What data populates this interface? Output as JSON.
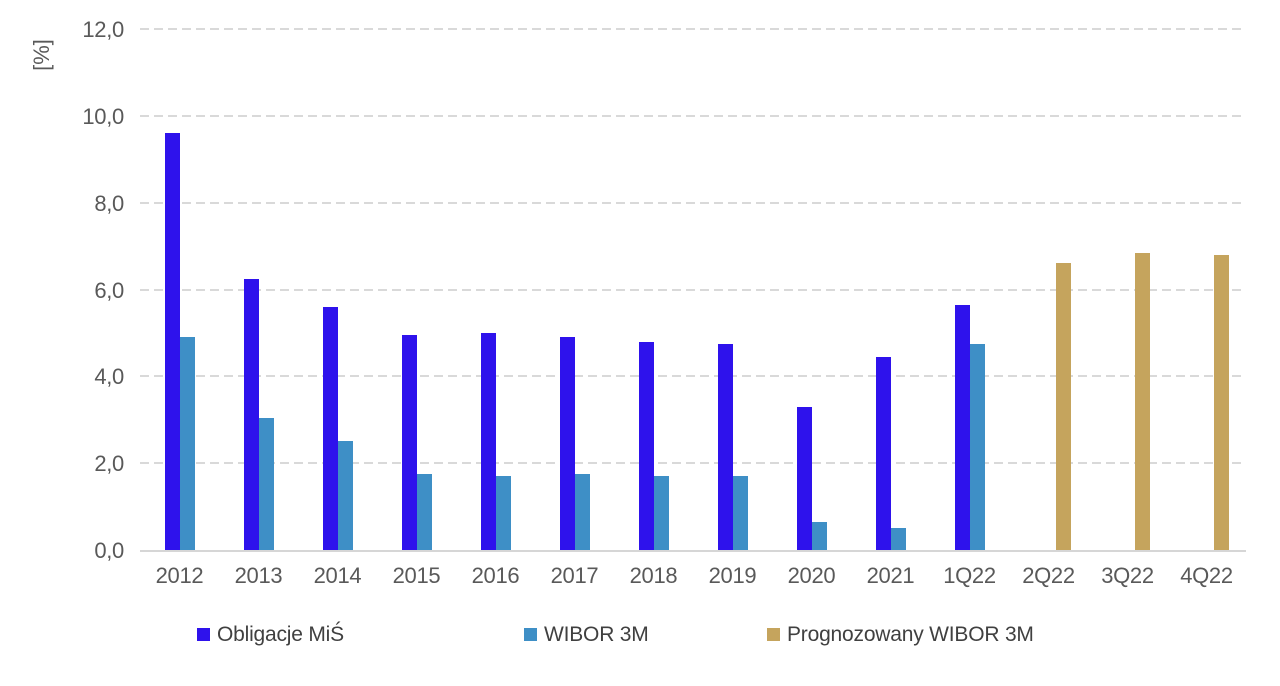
{
  "chart_data": {
    "type": "bar",
    "title": "",
    "ylabel": "[%]",
    "xlabel": "",
    "categories": [
      "2012",
      "2013",
      "2014",
      "2015",
      "2016",
      "2017",
      "2018",
      "2019",
      "2020",
      "2021",
      "1Q22",
      "2Q22",
      "3Q22",
      "4Q22"
    ],
    "series": [
      {
        "name": "Obligacje MiŚ",
        "color": "#2E12EC",
        "values": [
          9.6,
          6.25,
          5.6,
          4.95,
          5.0,
          4.9,
          4.8,
          4.75,
          3.3,
          4.45,
          5.65,
          null,
          null,
          null
        ]
      },
      {
        "name": "WIBOR 3M",
        "color": "#3E8FC6",
        "values": [
          4.9,
          3.05,
          2.5,
          1.75,
          1.7,
          1.75,
          1.7,
          1.7,
          0.65,
          0.5,
          4.75,
          null,
          null,
          null
        ]
      },
      {
        "name": "Prognozowany WIBOR 3M",
        "color": "#C5A45D",
        "values": [
          null,
          null,
          null,
          null,
          null,
          null,
          null,
          null,
          null,
          null,
          null,
          6.6,
          6.85,
          6.8
        ]
      }
    ],
    "ylim": [
      0,
      12
    ],
    "ytick_step": 2,
    "ytick_labels": [
      "0,0",
      "2,0",
      "4,0",
      "6,0",
      "8,0",
      "10,0",
      "12,0"
    ],
    "grid": "horizontal-dashed",
    "gridline_color": "#D9D9D9",
    "axis_text_color": "#595959",
    "legend_position": "bottom"
  }
}
